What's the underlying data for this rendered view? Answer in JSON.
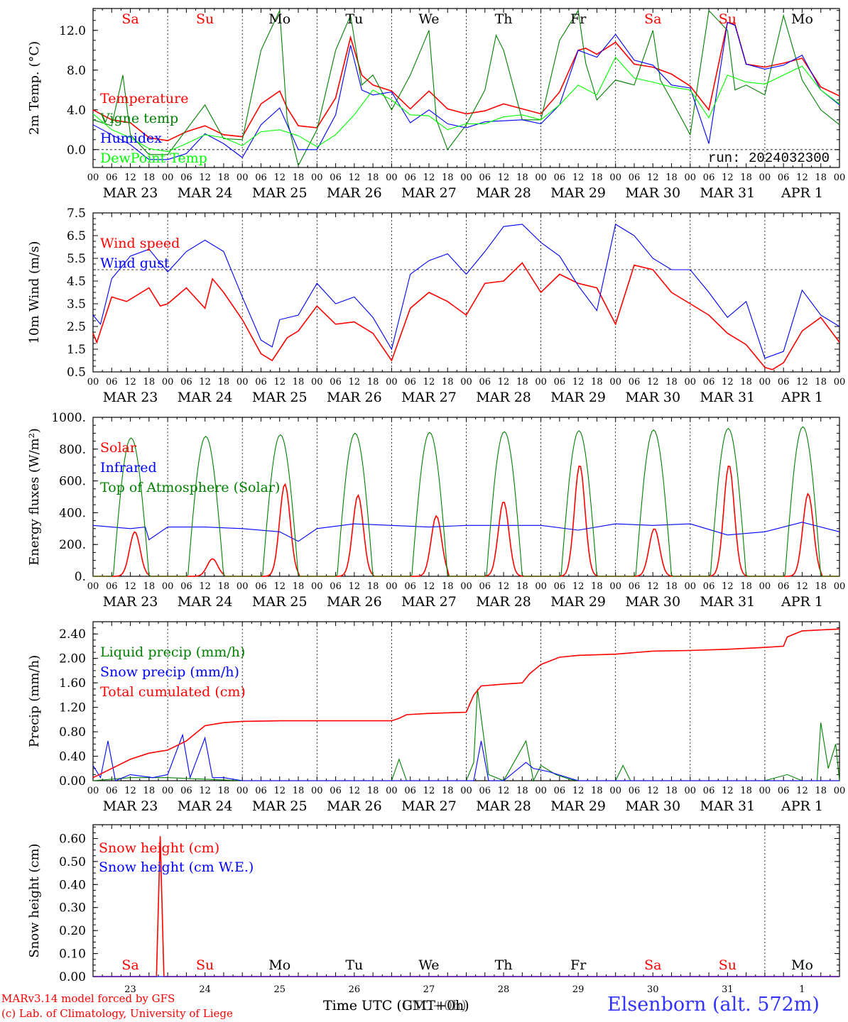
{
  "run_label": "run: 2024032300",
  "footer": {
    "model": "MARv3.14 model forced by GFS",
    "lab": "(c) Lab. of Climatology, University of Liege",
    "time_axis": "Time UTC (GMT+0h)",
    "time_axis_overlay": "Time UTC (UTC+0h)",
    "station": "Elsenborn (alt. 572m)"
  },
  "colors": {
    "red": "#ff0000",
    "blue": "#0000ff",
    "green": "#008000",
    "lightgreen": "#00ff00",
    "weekend": "#ff0000",
    "weekday": "#000000"
  },
  "days": {
    "weekday_labels": [
      "Sa",
      "Su",
      "Mo",
      "Tu",
      "We",
      "Th",
      "Fr",
      "Sa",
      "Su",
      "Mo"
    ],
    "weekend_flags": [
      true,
      true,
      false,
      false,
      false,
      false,
      false,
      true,
      true,
      false
    ],
    "date_labels": [
      "MAR 23",
      "MAR 24",
      "MAR 25",
      "MAR 26",
      "MAR 27",
      "MAR 28",
      "MAR 29",
      "MAR 30",
      "MAR 31",
      "APR  1"
    ],
    "day_numbers": [
      "23",
      "24",
      "25",
      "26",
      "27",
      "28",
      "29",
      "30",
      "31",
      "1"
    ],
    "hour_labels": [
      "00",
      "06",
      "12",
      "18"
    ],
    "last_hour_label": "00"
  },
  "chart_data": [
    {
      "type": "line",
      "ylabel": "2m Temp. (°C)",
      "ylim": [
        -1.8,
        14.2
      ],
      "yticks": [
        "0.0",
        "4.0",
        "8.0",
        "12.0"
      ],
      "ytick_values": [
        0,
        4,
        8,
        12
      ],
      "reference_line": 0,
      "x_days": [
        0,
        10
      ],
      "series": [
        {
          "name": "Temperature",
          "color": "red",
          "x": [
            0,
            0.25,
            0.5,
            0.75,
            1,
            1.25,
            1.5,
            1.75,
            2,
            2.25,
            2.5,
            2.6,
            2.75,
            3,
            3.25,
            3.45,
            3.6,
            3.75,
            4,
            4.25,
            4.5,
            4.75,
            5,
            5.25,
            5.5,
            5.75,
            6,
            6.25,
            6.5,
            6.6,
            6.75,
            7,
            7.25,
            7.5,
            7.75,
            8,
            8.25,
            8.5,
            8.6,
            8.75,
            9,
            9.25,
            9.5,
            9.75,
            10
          ],
          "values": [
            4,
            3,
            2.7,
            1.2,
            0.9,
            1.8,
            2.4,
            1.5,
            1.3,
            4.6,
            5.9,
            4.2,
            2.4,
            2.2,
            5.2,
            11.3,
            7.5,
            6.5,
            5.9,
            4.1,
            5.9,
            4.1,
            3.6,
            3.9,
            4.6,
            4.1,
            3.6,
            5.8,
            10,
            10.2,
            9.6,
            10.8,
            8.6,
            8.3,
            7.6,
            6.4,
            4,
            12.8,
            12.6,
            8.6,
            8.3,
            8.7,
            9.2,
            6.3,
            5.4
          ]
        },
        {
          "name": "Vigne temp",
          "color": "green",
          "x": [
            0,
            0.25,
            0.4,
            0.5,
            0.75,
            1,
            1.25,
            1.5,
            1.75,
            2,
            2.25,
            2.5,
            2.6,
            2.75,
            3,
            3.25,
            3.45,
            3.6,
            3.75,
            4,
            4.25,
            4.5,
            4.6,
            4.75,
            5,
            5.25,
            5.4,
            5.5,
            5.75,
            6,
            6.25,
            6.5,
            6.6,
            6.75,
            7,
            7.25,
            7.5,
            7.6,
            7.75,
            8,
            8.25,
            8.5,
            8.6,
            8.75,
            9,
            9.25,
            9.5,
            9.75,
            10
          ],
          "values": [
            3,
            2.4,
            7.5,
            1.5,
            -0.5,
            -0.5,
            2,
            4.5,
            1.1,
            1,
            10,
            14,
            3,
            -1.6,
            2,
            10,
            13.5,
            6.5,
            7.5,
            4,
            7.5,
            12,
            3,
            0,
            2.5,
            6,
            11.5,
            10,
            3,
            3,
            11,
            14,
            8.7,
            5,
            7,
            6.5,
            12,
            7,
            5,
            1.5,
            14,
            12,
            6,
            6.5,
            5.5,
            13.5,
            7,
            4,
            2.5
          ]
        },
        {
          "name": "Humidex",
          "color": "blue",
          "x": [
            0,
            0.25,
            0.5,
            0.75,
            1,
            1.25,
            1.5,
            1.75,
            2,
            2.25,
            2.5,
            2.75,
            3,
            3.25,
            3.45,
            3.6,
            3.75,
            4,
            4.25,
            4.5,
            4.75,
            5,
            5.25,
            5.5,
            5.75,
            6,
            6.25,
            6.5,
            6.75,
            7,
            7.25,
            7.5,
            7.75,
            8,
            8.25,
            8.5,
            8.6,
            8.75,
            9,
            9.25,
            9.5,
            9.75,
            10
          ],
          "values": [
            2.5,
            1.5,
            0.5,
            -1,
            -1,
            -0.4,
            1.6,
            0.6,
            -0.8,
            2.5,
            4.2,
            0,
            0,
            3.5,
            10.5,
            6,
            5.5,
            5.8,
            2.7,
            4,
            2.6,
            2.2,
            2.8,
            2.9,
            3,
            2.6,
            4.5,
            10,
            9.3,
            11.6,
            9,
            8.5,
            6.5,
            6.2,
            0.6,
            12.8,
            12.5,
            8.6,
            8.1,
            8.5,
            9.5,
            6,
            4.5
          ]
        },
        {
          "name": "DewPoint Temp",
          "color": "lightgreen",
          "x": [
            0,
            0.25,
            0.5,
            0.75,
            1,
            1.25,
            1.5,
            1.75,
            2,
            2.25,
            2.5,
            2.75,
            3,
            3.25,
            3.5,
            3.75,
            4,
            4.25,
            4.5,
            4.75,
            5,
            5.25,
            5.5,
            5.75,
            6,
            6.25,
            6.5,
            6.75,
            7,
            7.25,
            7.5,
            7.75,
            8,
            8.25,
            8.5,
            8.75,
            9,
            9.25,
            9.5,
            9.75,
            10
          ],
          "values": [
            3.6,
            2,
            1.2,
            0.1,
            -0.2,
            0.6,
            1.5,
            1.2,
            0.4,
            1.8,
            2,
            1.4,
            0.3,
            1.5,
            3.5,
            6,
            5,
            3.5,
            3.4,
            2,
            2.6,
            2.6,
            3.3,
            3.5,
            3,
            4.5,
            6.5,
            5.5,
            9.3,
            7.2,
            6.8,
            6.3,
            6,
            3.2,
            7.5,
            6.8,
            6.6,
            7.5,
            8.4,
            6,
            4.6
          ]
        }
      ]
    },
    {
      "type": "line",
      "ylabel": "10m Wind (m/s)",
      "ylim": [
        0.5,
        7.5
      ],
      "yticks": [
        "0.5",
        "1.5",
        "2.5",
        "3.5",
        "4.5",
        "5.5",
        "6.5",
        "7.5"
      ],
      "ytick_values": [
        0.5,
        1.5,
        2.5,
        3.5,
        4.5,
        5.5,
        6.5,
        7.5
      ],
      "reference_line": 5,
      "x_days": [
        0,
        10
      ],
      "series": [
        {
          "name": "Wind speed",
          "color": "red",
          "x": [
            0,
            0.05,
            0.25,
            0.45,
            0.75,
            0.9,
            1,
            1.25,
            1.5,
            1.6,
            1.75,
            2,
            2.25,
            2.4,
            2.6,
            2.75,
            3,
            3.25,
            3.5,
            3.75,
            4,
            4.25,
            4.5,
            4.75,
            5,
            5.25,
            5.5,
            5.75,
            6,
            6.25,
            6.5,
            6.75,
            7,
            7.25,
            7.5,
            7.75,
            8,
            8.25,
            8.5,
            8.75,
            9,
            9.1,
            9.25,
            9.5,
            9.75,
            10
          ],
          "values": [
            2.2,
            1.8,
            3.8,
            3.6,
            4.2,
            3.4,
            3.5,
            4.2,
            3.3,
            4.6,
            4,
            2.8,
            1.3,
            1,
            2,
            2.3,
            3.4,
            2.6,
            2.7,
            2.2,
            1,
            3.3,
            4,
            3.6,
            3,
            4.4,
            4.5,
            5.3,
            4,
            4.8,
            4.4,
            4.2,
            2.6,
            5.2,
            5,
            4,
            3.5,
            3,
            2.2,
            1.7,
            0.7,
            0.6,
            0.9,
            2.3,
            2.9,
            1.8
          ]
        },
        {
          "name": "Wind gust",
          "color": "blue",
          "x": [
            0,
            0.1,
            0.25,
            0.5,
            0.75,
            1,
            1.25,
            1.5,
            1.75,
            2,
            2.25,
            2.4,
            2.5,
            2.75,
            3,
            3.25,
            3.5,
            3.75,
            4,
            4.25,
            4.5,
            4.75,
            5,
            5.25,
            5.5,
            5.75,
            6,
            6.25,
            6.5,
            6.75,
            7,
            7.25,
            7.5,
            7.75,
            8,
            8.25,
            8.5,
            8.75,
            9,
            9.25,
            9.5,
            9.75,
            10
          ],
          "values": [
            3,
            2.6,
            4.6,
            5.6,
            5.9,
            4.9,
            5.8,
            6.3,
            5.8,
            3.8,
            1.9,
            1.6,
            2.8,
            3,
            4.4,
            3.5,
            3.8,
            2.9,
            1.5,
            4.8,
            5.4,
            5.7,
            4.8,
            5.8,
            6.9,
            7,
            6.2,
            5.6,
            4.3,
            3.2,
            7,
            6.5,
            5.5,
            5,
            5,
            4,
            2.9,
            3.6,
            1.1,
            1.4,
            4.1,
            3,
            2.5
          ]
        }
      ]
    },
    {
      "type": "line",
      "ylabel": "Energy fluxes (W/m²)",
      "ylim": [
        0,
        1000
      ],
      "yticks": [
        "0.",
        "200.",
        "400.",
        "600.",
        "800.",
        "1000."
      ],
      "ytick_values": [
        0,
        200,
        400,
        600,
        800,
        1000
      ],
      "x_days": [
        0,
        10
      ],
      "series": [
        {
          "name": "Solar",
          "color": "red",
          "peaks": [
            280,
            110,
            580,
            510,
            380,
            470,
            700,
            300,
            700,
            520
          ],
          "peak_pos": [
            0.56,
            0.6,
            0.57,
            0.55,
            0.6,
            0.5,
            0.52,
            0.52,
            0.52,
            0.58
          ]
        },
        {
          "name": "Infrared",
          "color": "blue",
          "x": [
            0,
            0.5,
            0.7,
            0.75,
            1,
            1.5,
            2,
            2.5,
            2.75,
            3,
            3.5,
            4,
            4.5,
            5,
            5.5,
            6,
            6.5,
            7,
            7.5,
            8,
            8.5,
            9,
            9.5,
            10
          ],
          "values": [
            320,
            300,
            310,
            230,
            310,
            310,
            300,
            280,
            220,
            300,
            330,
            320,
            310,
            320,
            320,
            320,
            290,
            330,
            320,
            330,
            260,
            280,
            340,
            280
          ]
        },
        {
          "name": "Top of Atmosphere (Solar)",
          "color": "green",
          "peaks": [
            870,
            880,
            890,
            900,
            905,
            910,
            915,
            920,
            930,
            940
          ]
        }
      ]
    },
    {
      "type": "line",
      "ylabel": "Precip (mm/h)",
      "ylim": [
        0,
        2.6
      ],
      "yticks": [
        "0.00",
        "0.40",
        "0.80",
        "1.20",
        "1.60",
        "2.00",
        "2.40"
      ],
      "ytick_values": [
        0,
        0.4,
        0.8,
        1.2,
        1.6,
        2.0,
        2.4
      ],
      "x_days": [
        0,
        10
      ],
      "series": [
        {
          "name": "Liquid precip (mm/h)",
          "color": "green",
          "x": [
            0,
            0.5,
            1,
            2,
            4,
            4.1,
            4.2,
            4.5,
            5,
            5.1,
            5.15,
            5.3,
            5.5,
            5.8,
            5.9,
            6,
            6.2,
            6.4,
            6.5,
            7,
            7.1,
            7.2,
            7.5,
            9,
            9.3,
            9.5,
            9.7,
            9.75,
            9.85,
            9.95,
            10
          ],
          "values": [
            0,
            0.05,
            0.05,
            0,
            0,
            0.35,
            0,
            0,
            0,
            0.3,
            1.5,
            0.1,
            0,
            0.65,
            0,
            0.25,
            0.1,
            0.02,
            0,
            0,
            0.25,
            0,
            0,
            0,
            0.1,
            0,
            0,
            0.95,
            0.2,
            0.6,
            0
          ]
        },
        {
          "name": "Snow precip (mm/h)",
          "color": "blue",
          "x": [
            0,
            0.1,
            0.2,
            0.3,
            0.5,
            0.8,
            1,
            1.2,
            1.3,
            1.5,
            1.6,
            1.75,
            2,
            3,
            5,
            5.1,
            5.2,
            5.3,
            5.5,
            5.8,
            5.9,
            6.1,
            6.5,
            10
          ],
          "values": [
            0.25,
            0.05,
            0.65,
            0,
            0.1,
            0.05,
            0.1,
            0.75,
            0.05,
            0.7,
            0.05,
            0.05,
            0,
            0,
            0,
            0,
            0.65,
            0,
            0,
            0.3,
            0.2,
            0.15,
            0,
            0
          ]
        },
        {
          "name": "Total cumulated (cm)",
          "color": "red",
          "x": [
            0,
            0.25,
            0.5,
            0.75,
            1,
            1.25,
            1.5,
            1.75,
            2,
            2.5,
            3,
            3.5,
            4,
            4.1,
            4.2,
            4.5,
            5,
            5.1,
            5.2,
            5.5,
            5.75,
            5.85,
            6,
            6.25,
            6.5,
            7,
            7.5,
            8,
            8.5,
            9,
            9.25,
            9.3,
            9.5,
            10
          ],
          "values": [
            0.05,
            0.2,
            0.35,
            0.45,
            0.5,
            0.65,
            0.9,
            0.95,
            0.97,
            0.98,
            0.98,
            0.98,
            0.98,
            1.02,
            1.08,
            1.1,
            1.12,
            1.4,
            1.55,
            1.58,
            1.6,
            1.75,
            1.9,
            2.02,
            2.05,
            2.07,
            2.12,
            2.13,
            2.15,
            2.18,
            2.2,
            2.35,
            2.45,
            2.48
          ]
        }
      ]
    },
    {
      "type": "line",
      "ylabel": "Snow height (cm)",
      "ylim": [
        0,
        0.66
      ],
      "yticks": [
        "0.00",
        "0.10",
        "0.20",
        "0.30",
        "0.40",
        "0.50",
        "0.60"
      ],
      "ytick_values": [
        0,
        0.1,
        0.2,
        0.3,
        0.4,
        0.5,
        0.6
      ],
      "x_days": [
        0,
        10
      ],
      "series": [
        {
          "name": "Snow height (cm)",
          "color": "red",
          "x": [
            0,
            0.85,
            0.9,
            0.95,
            10
          ],
          "values": [
            0,
            0,
            0.61,
            0,
            0
          ]
        },
        {
          "name": "Snow height (cm W.E.)",
          "color": "blue",
          "x": [
            0,
            10
          ],
          "values": [
            0,
            0
          ]
        }
      ]
    }
  ]
}
